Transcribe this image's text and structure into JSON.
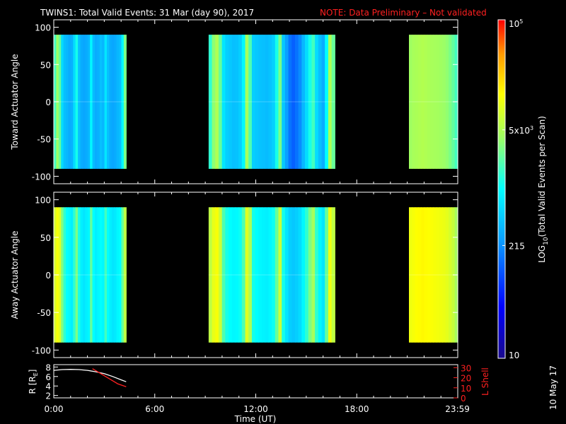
{
  "header": {
    "title": "TWINS1: Total Valid Events: 31 Mar (day  90), 2017",
    "note": "NOTE: Data Preliminary – Not validated",
    "note_color": "#ff2020"
  },
  "colorbar": {
    "label": "LOG",
    "label_sub": "10",
    "label_rest": "(Total Valid Events per Scan)",
    "scale": "log",
    "range": [
      10,
      100000
    ],
    "ticks": [
      {
        "value": 100000,
        "base": "10",
        "exp": "5"
      },
      {
        "value": 5000,
        "base": "5x10",
        "exp": "3"
      },
      {
        "value": 215,
        "base": "215",
        "exp": ""
      },
      {
        "value": 10,
        "base": "10",
        "exp": ""
      }
    ]
  },
  "date_stamp": "10 May 17",
  "chart_data": [
    {
      "type": "heatmap",
      "ylabel": "Toward Actuator Angle",
      "ylim": [
        -110,
        110
      ],
      "yticks": [
        "100",
        "50",
        "0",
        "-50",
        "-100"
      ],
      "ytick_values": [
        100,
        50,
        0,
        -50,
        -100
      ],
      "angle_range": [
        -90,
        90
      ],
      "xlim_hours": [
        0,
        24
      ],
      "segments": [
        {
          "start_hour": 0.0,
          "end_hour": 4.3,
          "profile": [
            1800,
            4000,
            2500,
            600,
            400,
            350,
            300,
            320,
            600,
            1200,
            400,
            300,
            280,
            300,
            350,
            900,
            380,
            300,
            320,
            400,
            350,
            700,
            400,
            300,
            280,
            300,
            350,
            400,
            900,
            3000
          ]
        },
        {
          "start_hour": 9.2,
          "end_hour": 16.7,
          "profile": [
            1500,
            3500,
            5000,
            2500,
            700,
            500,
            450,
            400,
            420,
            500,
            900,
            4500,
            2000,
            500,
            450,
            420,
            400,
            380,
            420,
            500,
            1200,
            3000,
            450,
            250,
            150,
            120,
            150,
            200,
            350,
            600,
            1200,
            1800,
            600,
            400,
            300,
            1000,
            5000,
            2500
          ]
        },
        {
          "start_hour": 21.1,
          "end_hour": 24.0,
          "profile": [
            4200,
            4600,
            4800,
            5000,
            5200,
            5000,
            4800,
            4600,
            4500,
            4400,
            4200,
            4000,
            3600,
            3000,
            2400,
            1800
          ]
        }
      ]
    },
    {
      "type": "heatmap",
      "ylabel": "Away Actuator Angle",
      "ylim": [
        -110,
        110
      ],
      "yticks": [
        "100",
        "50",
        "0",
        "-50",
        "-100"
      ],
      "ytick_values": [
        100,
        50,
        0,
        -50,
        -100
      ],
      "angle_range": [
        -90,
        90
      ],
      "xlim_hours": [
        0,
        24
      ],
      "segments": [
        {
          "start_hour": 0.0,
          "end_hour": 4.3,
          "profile": [
            8000,
            12000,
            9000,
            3000,
            1500,
            1000,
            900,
            800,
            1500,
            3000,
            1200,
            800,
            700,
            800,
            900,
            2500,
            1000,
            800,
            900,
            1000,
            900,
            1800,
            1000,
            800,
            700,
            750,
            900,
            1000,
            2500,
            6000
          ]
        },
        {
          "start_hour": 9.2,
          "end_hour": 16.7,
          "profile": [
            6000,
            10000,
            12000,
            7000,
            2000,
            1200,
            1000,
            900,
            950,
            1100,
            2000,
            9000,
            5000,
            1200,
            1000,
            900,
            850,
            800,
            900,
            1100,
            2500,
            7000,
            1200,
            700,
            500,
            450,
            500,
            600,
            900,
            1500,
            3000,
            4500,
            1500,
            900,
            700,
            2500,
            11000,
            6000
          ]
        },
        {
          "start_hour": 21.1,
          "end_hour": 24.0,
          "profile": [
            11000,
            12000,
            13000,
            13500,
            14000,
            13500,
            13000,
            12500,
            12000,
            11500,
            11000,
            10500,
            9500,
            8000,
            6500,
            4500
          ]
        }
      ]
    },
    {
      "type": "line",
      "ylabel": "R [R",
      "ylabel_sub": "E",
      "ylabel_end": "]",
      "y2label": "L Shell",
      "ylim": [
        1.5,
        8.5
      ],
      "yticks": [
        "8",
        "6",
        "4",
        "2"
      ],
      "ytick_values": [
        8,
        6,
        4,
        2
      ],
      "y2lim": [
        0,
        33
      ],
      "y2ticks": [
        "30",
        "20",
        "10",
        "0"
      ],
      "y2tick_values": [
        30,
        20,
        10,
        0
      ],
      "xlim_hours": [
        0,
        24
      ],
      "series": [
        {
          "color": "#ffffff",
          "axis": "left",
          "x": [
            0.0,
            0.5,
            1.0,
            1.5,
            2.0,
            2.5,
            3.0,
            3.5,
            4.0,
            4.3
          ],
          "y": [
            7.3,
            7.45,
            7.5,
            7.45,
            7.3,
            7.0,
            6.6,
            6.0,
            5.3,
            4.9
          ]
        },
        {
          "color": "#ff2020",
          "axis": "right",
          "x": [
            2.3,
            2.8,
            3.3,
            3.8,
            4.3
          ],
          "y": [
            29,
            24,
            19,
            14,
            11
          ]
        }
      ],
      "xticks": [
        "0:00",
        "6:00",
        "12:00",
        "18:00",
        "23:59"
      ],
      "xtick_values": [
        0,
        6,
        12,
        18,
        23.983
      ],
      "xlabel": "Time (UT)"
    }
  ]
}
